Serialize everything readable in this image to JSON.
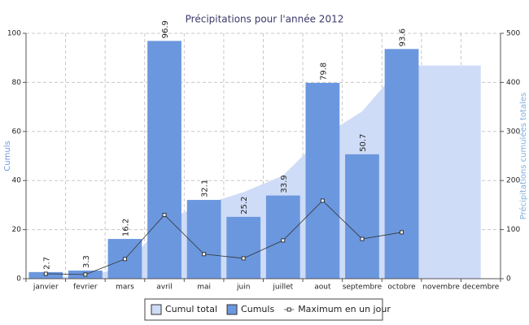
{
  "chart_data": {
    "type": "bar",
    "title": "Précipitations pour l'année 2012",
    "ylabel": "Cumuls",
    "y2label": "Précipitations cumulées totales",
    "categories": [
      "janvier",
      "fevrier",
      "mars",
      "avril",
      "mai",
      "juin",
      "juillet",
      "aout",
      "septembre",
      "octobre",
      "novembre",
      "decembre"
    ],
    "ylim": [
      0,
      100
    ],
    "yticks": [
      0,
      20,
      40,
      60,
      80,
      100
    ],
    "y2lim": [
      0,
      500
    ],
    "y2ticks": [
      0,
      100,
      200,
      300,
      400,
      500
    ],
    "grid": true,
    "legend": "bottom",
    "series": [
      {
        "name": "Cumul total",
        "type": "area",
        "axis": "y2",
        "color": "#cfdcf7",
        "values": [
          2.7,
          6,
          22.2,
          119.1,
          151.2,
          176.4,
          210.3,
          290.1,
          340.8,
          434.4,
          434.4,
          434.4
        ]
      },
      {
        "name": "Cumuls",
        "type": "bar",
        "color": "#6b97de",
        "values": [
          2.7,
          3.3,
          16.2,
          96.9,
          32.1,
          25.2,
          33.9,
          79.8,
          50.7,
          93.6,
          null,
          null
        ]
      },
      {
        "name": "Maximum en un jour",
        "type": "line",
        "color": "#333333",
        "values": [
          2,
          1.7,
          8,
          26,
          10,
          8.3,
          15.6,
          31.8,
          16.2,
          18.9,
          null,
          null
        ]
      }
    ]
  }
}
